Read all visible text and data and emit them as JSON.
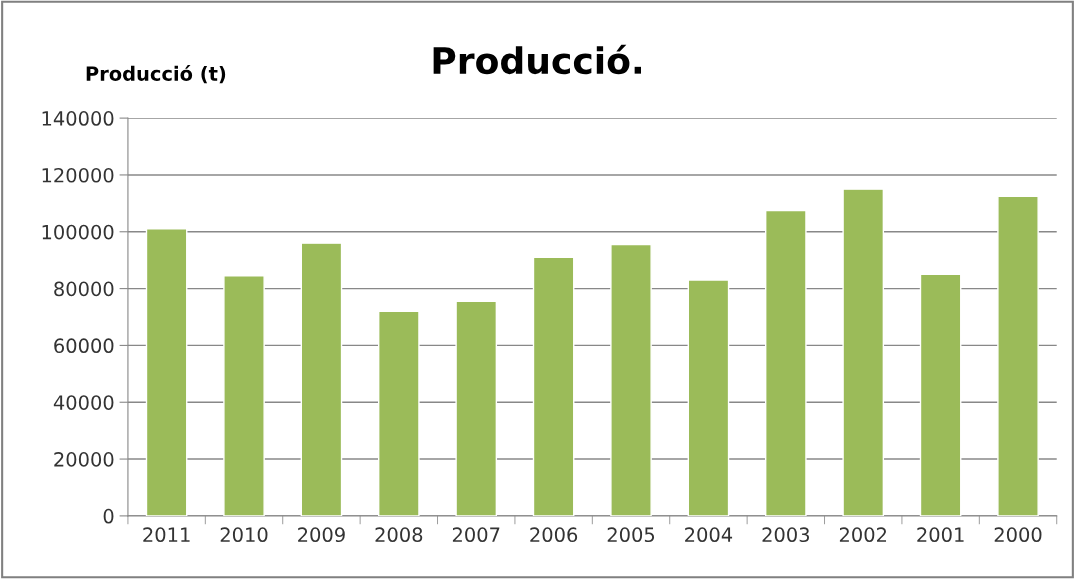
{
  "chart_data": {
    "type": "bar",
    "title": "Producció.",
    "ylabel": "Producció (t)",
    "categories": [
      "2011",
      "2010",
      "2009",
      "2008",
      "2007",
      "2006",
      "2005",
      "2004",
      "2003",
      "2002",
      "2001",
      "2000"
    ],
    "values": [
      101000,
      84500,
      96000,
      72000,
      75500,
      91000,
      95500,
      83000,
      107500,
      115000,
      85000,
      112500
    ],
    "color": "#9bbb59",
    "ylim": [
      0,
      140000
    ],
    "yticks": [
      0,
      20000,
      40000,
      60000,
      80000,
      100000,
      120000,
      140000
    ],
    "grid": "y",
    "legend": false
  }
}
